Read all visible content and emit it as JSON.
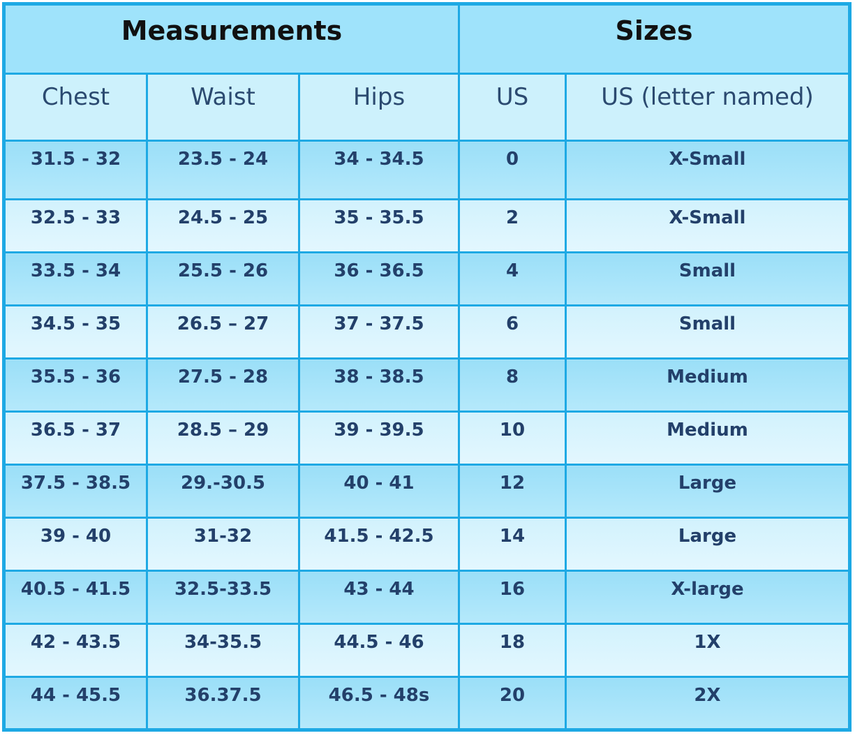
{
  "headers": {
    "groups": [
      "Measurements",
      "Sizes"
    ],
    "columns": [
      "Chest",
      "Waist",
      "Hips",
      "US",
      "US  (letter named)"
    ]
  },
  "rows": [
    [
      "31.5 - 32",
      "23.5 - 24",
      "34 - 34.5",
      "0",
      "X-Small"
    ],
    [
      "32.5 - 33",
      "24.5 - 25",
      "35 - 35.5",
      "2",
      "X-Small"
    ],
    [
      "33.5 - 34",
      "25.5 - 26",
      "36 - 36.5",
      "4",
      "Small"
    ],
    [
      "34.5 - 35",
      "26.5 – 27",
      "37 - 37.5",
      "6",
      "Small"
    ],
    [
      "35.5 - 36",
      "27.5 - 28",
      "38 - 38.5",
      "8",
      "Medium"
    ],
    [
      "36.5 - 37",
      "28.5 – 29",
      "39 - 39.5",
      "10",
      "Medium"
    ],
    [
      "37.5 - 38.5",
      "29.-30.5",
      "40 - 41",
      "12",
      "Large"
    ],
    [
      "39 - 40",
      "31-32",
      "41.5 - 42.5",
      "14",
      "Large"
    ],
    [
      "40.5 - 41.5",
      "32.5-33.5",
      "43 - 44",
      "16",
      "X-large"
    ],
    [
      "42 - 43.5",
      "34-35.5",
      "44.5 - 46",
      "18",
      "1X"
    ],
    [
      "44 - 45.5",
      "36.37.5",
      "46.5 - 48s",
      "20",
      "2X"
    ]
  ],
  "colors": {
    "border": "#1ea9e4",
    "header": "#9fe3fb",
    "subheader": "#cdf1fc",
    "row_dark": "#a8e4f9",
    "row_light": "#d8f4fd",
    "text": "#23406a"
  }
}
